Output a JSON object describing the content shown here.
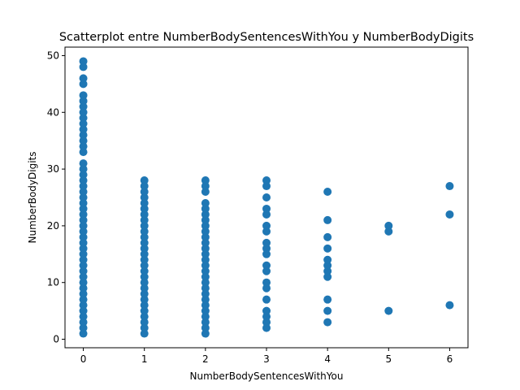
{
  "chart_data": {
    "type": "scatter",
    "title": "Scatterplot entre NumberBodySentencesWithYou y NumberBodyDigits",
    "xlabel": "NumberBodySentencesWithYou",
    "ylabel": "NumberBodyDigits",
    "xlim": [
      -0.3,
      6.3
    ],
    "ylim": [
      -1.5,
      51.5
    ],
    "xticks": [
      0,
      1,
      2,
      3,
      4,
      5,
      6
    ],
    "yticks": [
      0,
      10,
      20,
      30,
      40,
      50
    ],
    "grid": false,
    "legend": "none",
    "marker_color": "#1f77b4",
    "points_by_x": [
      {
        "x": 0,
        "y": [
          1,
          2,
          3,
          4,
          5,
          6,
          7,
          8,
          9,
          10,
          11,
          12,
          13,
          14,
          15,
          16,
          17,
          18,
          19,
          20,
          21,
          22,
          23,
          24,
          25,
          26,
          27,
          28,
          29,
          30,
          31,
          33,
          34,
          35,
          36,
          37,
          38,
          39,
          40,
          41,
          42,
          43,
          45,
          46,
          48,
          49
        ]
      },
      {
        "x": 1,
        "y": [
          1,
          2,
          3,
          4,
          5,
          6,
          7,
          8,
          9,
          10,
          11,
          12,
          13,
          14,
          15,
          16,
          17,
          18,
          19,
          20,
          21,
          22,
          23,
          24,
          25,
          26,
          27,
          28
        ]
      },
      {
        "x": 2,
        "y": [
          1,
          2,
          3,
          4,
          5,
          6,
          7,
          8,
          9,
          10,
          11,
          12,
          13,
          14,
          15,
          16,
          17,
          18,
          19,
          20,
          21,
          22,
          23,
          24,
          26,
          27,
          28
        ]
      },
      {
        "x": 3,
        "y": [
          2,
          3,
          4,
          5,
          7,
          9,
          10,
          12,
          13,
          15,
          16,
          17,
          19,
          20,
          22,
          23,
          25,
          27,
          28
        ]
      },
      {
        "x": 4,
        "y": [
          3,
          5,
          7,
          11,
          12,
          13,
          14,
          16,
          18,
          21,
          26
        ]
      },
      {
        "x": 5,
        "y": [
          5,
          19,
          20
        ]
      },
      {
        "x": 6,
        "y": [
          6,
          22,
          27
        ]
      }
    ]
  }
}
